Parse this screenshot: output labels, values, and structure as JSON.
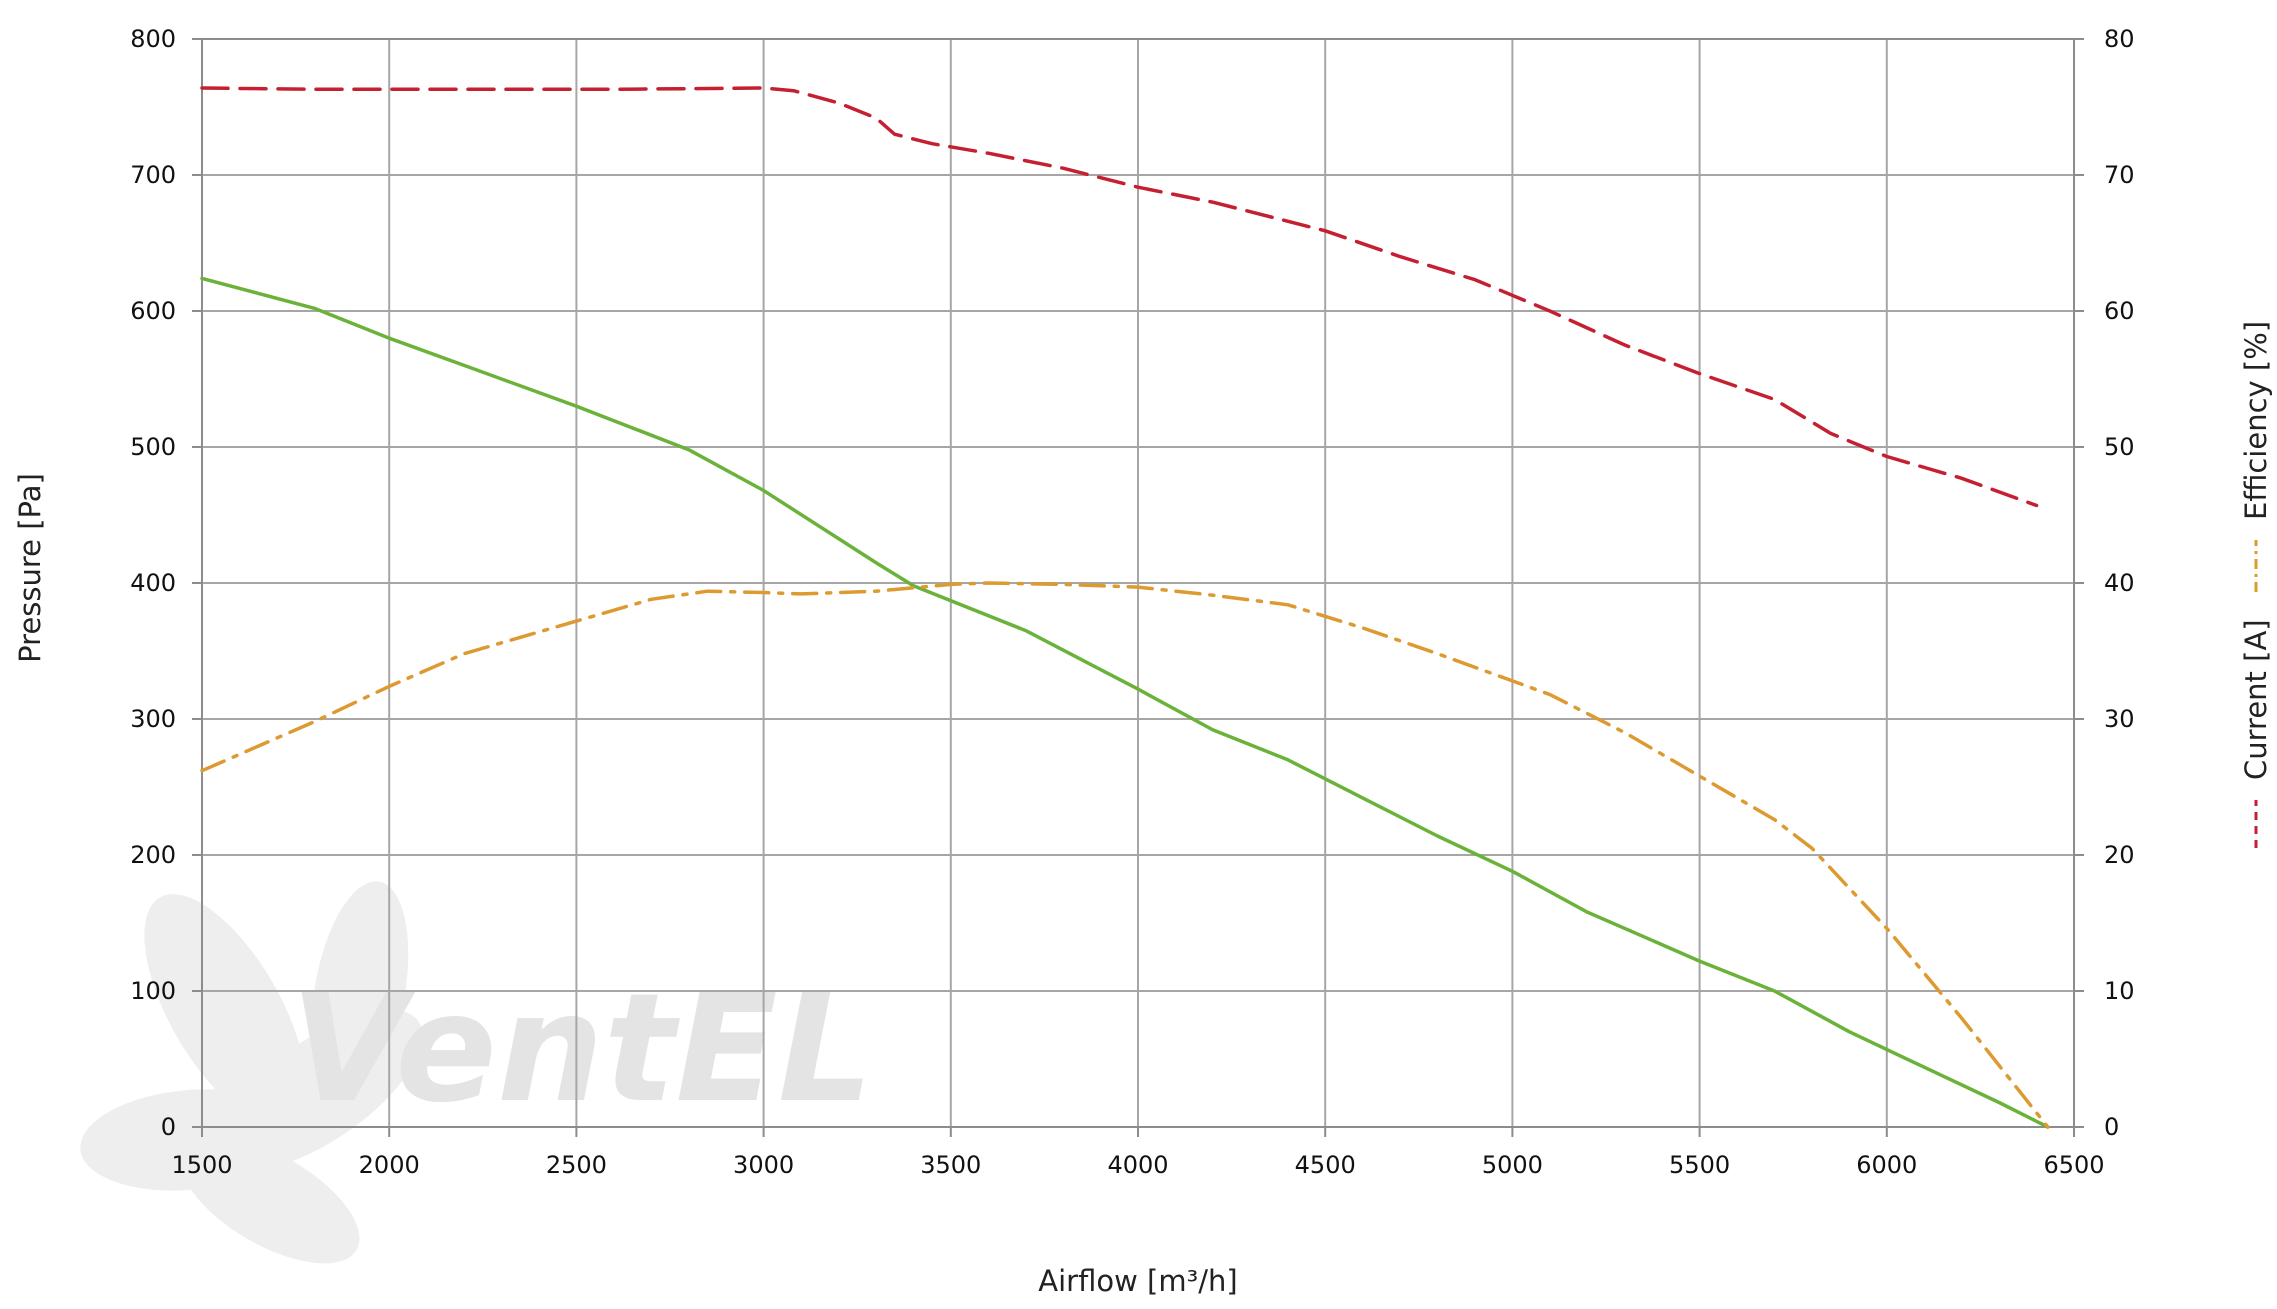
{
  "chart_data": {
    "type": "line",
    "xlabel": "Airflow [m³/h]",
    "ylabel": "Pressure [Pa]",
    "y2label_current": "Current [A]",
    "y2label_efficiency": "Efficiency [%]",
    "watermark_text": "VentEL",
    "xlim": [
      1500,
      6500
    ],
    "ylim": [
      0,
      800
    ],
    "y2lim": [
      0,
      80
    ],
    "x_ticks": [
      1500,
      2000,
      2500,
      3000,
      3500,
      4000,
      4500,
      5000,
      5500,
      6000,
      6500
    ],
    "y_ticks": [
      0,
      100,
      200,
      300,
      400,
      500,
      600,
      700,
      800
    ],
    "y2_ticks": [
      0,
      10,
      20,
      30,
      40,
      50,
      60,
      70,
      80
    ],
    "grid": true,
    "series": [
      {
        "key": "pressure",
        "axis": "left",
        "color": "#6ab23a",
        "style": "solid",
        "points": [
          [
            1500,
            624
          ],
          [
            1800,
            602
          ],
          [
            2000,
            580
          ],
          [
            2200,
            560
          ],
          [
            2500,
            530
          ],
          [
            2800,
            498
          ],
          [
            3000,
            468
          ],
          [
            3300,
            415
          ],
          [
            3400,
            398
          ],
          [
            3700,
            365
          ],
          [
            4000,
            322
          ],
          [
            4200,
            292
          ],
          [
            4400,
            270
          ],
          [
            4600,
            242
          ],
          [
            4800,
            214
          ],
          [
            5000,
            188
          ],
          [
            5200,
            158
          ],
          [
            5500,
            122
          ],
          [
            5700,
            100
          ],
          [
            5900,
            70
          ],
          [
            6100,
            44
          ],
          [
            6300,
            18
          ],
          [
            6430,
            0
          ]
        ]
      },
      {
        "key": "efficiency",
        "axis": "right",
        "color": "#dc9a30",
        "style": "dash-dot",
        "points": [
          [
            1500,
            26.2
          ],
          [
            1800,
            29.8
          ],
          [
            2000,
            32.4
          ],
          [
            2200,
            34.8
          ],
          [
            2500,
            37.2
          ],
          [
            2700,
            38.8
          ],
          [
            2850,
            39.4
          ],
          [
            3000,
            39.3
          ],
          [
            3100,
            39.2
          ],
          [
            3300,
            39.4
          ],
          [
            3500,
            39.9
          ],
          [
            3600,
            40.0
          ],
          [
            3800,
            39.9
          ],
          [
            4000,
            39.7
          ],
          [
            4200,
            39.1
          ],
          [
            4400,
            38.4
          ],
          [
            4600,
            36.7
          ],
          [
            4800,
            34.8
          ],
          [
            5000,
            32.8
          ],
          [
            5100,
            31.8
          ],
          [
            5300,
            29.0
          ],
          [
            5500,
            25.8
          ],
          [
            5700,
            22.6
          ],
          [
            5800,
            20.5
          ],
          [
            6000,
            14.6
          ],
          [
            6200,
            8.0
          ],
          [
            6430,
            0
          ]
        ]
      },
      {
        "key": "current",
        "axis": "right",
        "color": "#c52032",
        "style": "dashed",
        "points": [
          [
            1500,
            76.4
          ],
          [
            1800,
            76.3
          ],
          [
            2200,
            76.3
          ],
          [
            2600,
            76.3
          ],
          [
            3000,
            76.4
          ],
          [
            3080,
            76.2
          ],
          [
            3200,
            75.3
          ],
          [
            3300,
            74.2
          ],
          [
            3350,
            73.0
          ],
          [
            3450,
            72.3
          ],
          [
            3600,
            71.6
          ],
          [
            3800,
            70.5
          ],
          [
            4000,
            69.1
          ],
          [
            4200,
            68.0
          ],
          [
            4500,
            65.9
          ],
          [
            4700,
            64.0
          ],
          [
            4900,
            62.3
          ],
          [
            5100,
            60.0
          ],
          [
            5300,
            57.5
          ],
          [
            5500,
            55.4
          ],
          [
            5700,
            53.5
          ],
          [
            5850,
            51.0
          ],
          [
            6000,
            49.3
          ],
          [
            6200,
            47.7
          ],
          [
            6400,
            45.7
          ]
        ]
      }
    ]
  }
}
